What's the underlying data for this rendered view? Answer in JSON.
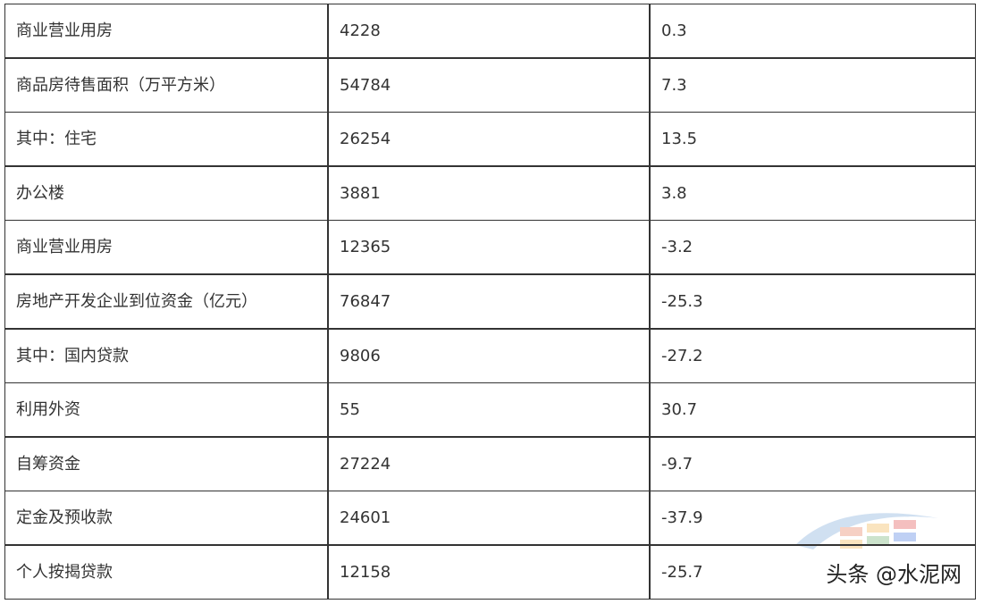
{
  "table": {
    "rows": [
      [
        "商业营业用房",
        "4228",
        "0.3"
      ],
      [
        "商品房待售面积（万平方米）",
        "54784",
        "7.3"
      ],
      [
        "其中：住宅",
        "26254",
        "13.5"
      ],
      [
        "办公楼",
        "3881",
        "3.8"
      ],
      [
        "商业营业用房",
        "12365",
        "-3.2"
      ],
      [
        "房地产开发企业到位资金（亿元）",
        "76847",
        "-25.3"
      ],
      [
        "其中：国内贷款",
        "9806",
        "-27.2"
      ],
      [
        "利用外资",
        "55",
        "30.7"
      ],
      [
        "自筹资金",
        "27224",
        "-9.7"
      ],
      [
        "定金及预收款",
        "24601",
        "-37.9"
      ],
      [
        "个人按揭贷款",
        "12158",
        "-25.7"
      ]
    ]
  },
  "watermark": "头条 @水泥网"
}
